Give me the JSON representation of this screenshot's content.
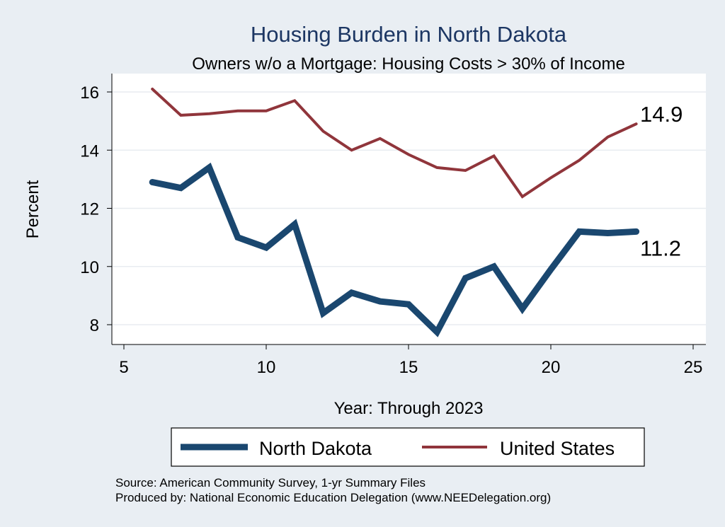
{
  "chart_data": {
    "type": "line",
    "title": "Housing Burden in North Dakota",
    "subtitle": "Owners w/o a Mortgage: Housing Costs > 30% of Income",
    "xlabel": "Year: Through 2023",
    "ylabel": "Percent",
    "xlim": [
      5,
      25
    ],
    "ylim": [
      7.5,
      16.4
    ],
    "xticks": [
      5,
      10,
      15,
      20,
      25
    ],
    "yticks": [
      8,
      10,
      12,
      14,
      16
    ],
    "grid": true,
    "legend_position": "bottom",
    "x": [
      6,
      7,
      8,
      9,
      10,
      11,
      12,
      13,
      14,
      15,
      16,
      17,
      18,
      19,
      20,
      21,
      22,
      23
    ],
    "series": [
      {
        "name": "North Dakota",
        "color": "#1a476f",
        "values": [
          12.9,
          12.7,
          13.4,
          11.0,
          10.65,
          11.45,
          8.4,
          9.1,
          8.8,
          8.7,
          7.75,
          9.6,
          10.0,
          8.55,
          9.9,
          11.2,
          11.15,
          11.2
        ],
        "end_label": "11.2"
      },
      {
        "name": "United States",
        "color": "#90353b",
        "values": [
          16.1,
          15.2,
          15.25,
          15.35,
          15.35,
          15.7,
          14.65,
          14.0,
          14.4,
          13.85,
          13.4,
          13.3,
          13.8,
          12.4,
          13.05,
          13.65,
          14.45,
          14.9
        ],
        "end_label": "14.9"
      }
    ],
    "notes": [
      "Source: American Community Survey, 1-yr Summary Files",
      "Produced by: National Economic Education Delegation (www.NEEDelegation.org)"
    ]
  }
}
